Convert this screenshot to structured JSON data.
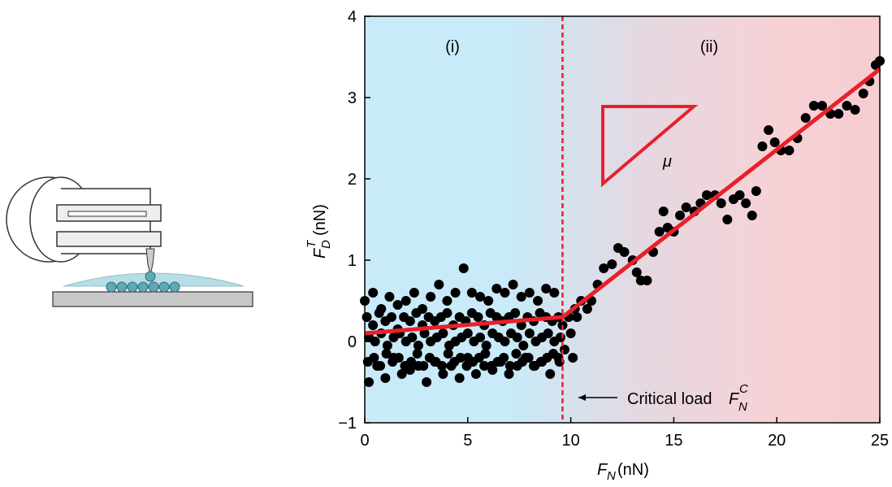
{
  "chart_data": {
    "type": "scatter",
    "xlabel": {
      "main": "F",
      "sub": "N",
      "unit": "(nN)"
    },
    "ylabel": {
      "main": "F",
      "sub": "D",
      "sup": "T",
      "unit": "(nN)"
    },
    "annotations": {
      "region_1": "(i)",
      "region_2": "(ii)",
      "slope": "μ"
    },
    "critical_label": {
      "text": "Critical load ",
      "main": "F",
      "sub": "N",
      "sup": "C"
    },
    "critical_load": 9.6,
    "color": "#000000",
    "xlim": [
      0,
      25
    ],
    "xticks": [
      0,
      5,
      10,
      15,
      20,
      25
    ],
    "ylim": [
      -1,
      4
    ],
    "yticks": [
      {
        "value": -1,
        "label": "−1"
      },
      0,
      1,
      2,
      3,
      4
    ],
    "fit": {
      "x": [
        0,
        9.6,
        25
      ],
      "values": [
        0.1,
        0.3,
        3.35
      ],
      "color": "#e8202a"
    },
    "x": [
      0,
      0.2,
      0.4,
      0.6,
      0.8,
      1,
      1.2,
      1.4,
      1.6,
      1.8,
      2,
      2.2,
      2.4,
      2.6,
      2.8,
      3,
      3.2,
      3.4,
      3.6,
      3.8,
      4,
      4.2,
      4.4,
      4.6,
      4.8,
      5,
      5.2,
      5.4,
      5.6,
      5.8,
      6,
      6.2,
      6.4,
      6.6,
      6.8,
      7,
      7.2,
      7.4,
      7.6,
      7.8,
      8,
      8.2,
      8.4,
      8.6,
      8.8,
      9,
      9.2,
      9.4,
      0.1,
      0.4,
      0.7,
      1,
      1.3,
      1.6,
      1.9,
      2.2,
      2.5,
      2.8,
      3.1,
      3.4,
      3.7,
      4,
      4.3,
      4.6,
      4.9,
      5.2,
      5.5,
      5.8,
      6.1,
      6.4,
      6.7,
      7,
      7.3,
      7.6,
      7.9,
      8.2,
      8.5,
      8.8,
      9.1,
      9.4,
      0.2,
      0.5,
      0.8,
      1.1,
      1.4,
      1.7,
      2,
      2.3,
      2.6,
      2.9,
      3.2,
      3.5,
      3.8,
      4.1,
      4.4,
      4.7,
      5,
      5.3,
      5.6,
      5.9,
      6.2,
      6.5,
      6.8,
      7.1,
      7.4,
      7.7,
      8,
      8.3,
      8.6,
      8.9,
      9.2,
      9.5,
      0.15,
      0.45,
      0.75,
      1.05,
      1.35,
      1.65,
      1.95,
      2.25,
      2.55,
      2.85,
      3.15,
      3.45,
      3.75,
      4.05,
      4.35,
      4.65,
      4.95,
      5.25,
      5.55,
      5.85,
      6.15,
      6.45,
      6.75,
      7.05,
      7.35,
      7.65,
      7.95,
      8.25,
      8.55,
      8.85,
      9.15,
      9.45,
      9.6,
      9.7,
      9.9,
      10,
      10.1,
      10.2,
      10.3,
      10.5,
      10.8,
      11,
      11.3,
      11.6,
      12,
      12.3,
      12.6,
      13,
      13.2,
      13.4,
      13.7,
      14,
      14.3,
      14.5,
      14.7,
      15,
      15.3,
      15.6,
      16,
      16.3,
      16.6,
      17,
      17.3,
      17.6,
      17.9,
      18.2,
      18.5,
      18.8,
      19,
      19.3,
      19.6,
      19.9,
      20.2,
      20.6,
      21,
      21.4,
      21.8,
      22.2,
      22.6,
      23,
      23.4,
      23.8,
      24.2,
      24.5,
      24.8,
      25
    ],
    "values": [
      0.5,
      -0.5,
      0.6,
      -0.3,
      0.4,
      -0.45,
      0.55,
      -0.2,
      0.45,
      -0.4,
      0.5,
      -0.35,
      0.6,
      -0.3,
      0.4,
      -0.5,
      0.55,
      -0.25,
      0.7,
      -0.4,
      0.5,
      -0.3,
      0.6,
      -0.45,
      0.9,
      -0.2,
      0.6,
      -0.4,
      0.55,
      -0.3,
      0.5,
      -0.35,
      0.65,
      -0.25,
      0.6,
      -0.4,
      0.7,
      -0.3,
      0.55,
      -0.2,
      0.6,
      -0.3,
      0.5,
      -0.25,
      0.65,
      -0.4,
      0.6,
      -0.2,
      0.3,
      0.2,
      0.35,
      0.25,
      0.3,
      0.15,
      0.3,
      0.25,
      0.35,
      0.2,
      0.3,
      0.25,
      0.3,
      0.35,
      0.2,
      0.3,
      0.25,
      0.35,
      0.3,
      0.2,
      0.35,
      0.3,
      0.25,
      0.3,
      0.35,
      0.2,
      0.3,
      0.25,
      0.35,
      0.3,
      0.25,
      0.3,
      0.05,
      0,
      0.1,
      -0.05,
      0.05,
      0.1,
      0,
      0.05,
      -0.05,
      0.1,
      0,
      0.05,
      0.1,
      -0.05,
      0,
      0.05,
      0.1,
      0,
      0.05,
      -0.05,
      0.1,
      0.05,
      0,
      0.1,
      0.05,
      -0.05,
      0.1,
      0,
      0.05,
      0.1,
      0,
      0.05,
      -0.25,
      -0.2,
      -0.3,
      -0.15,
      -0.25,
      -0.2,
      -0.3,
      -0.25,
      -0.15,
      -0.3,
      -0.2,
      -0.25,
      -0.3,
      -0.15,
      -0.25,
      -0.2,
      -0.3,
      -0.25,
      -0.2,
      -0.15,
      -0.3,
      -0.25,
      -0.2,
      -0.3,
      -0.15,
      -0.25,
      -0.2,
      -0.3,
      -0.25,
      -0.2,
      -0.15,
      -0.25,
      0.2,
      -0.1,
      0.3,
      0.1,
      -0.2,
      0.4,
      0.3,
      0.5,
      0.4,
      0.5,
      0.7,
      0.9,
      0.95,
      1.15,
      1.1,
      1,
      0.85,
      0.75,
      0.75,
      1.1,
      1.35,
      1.6,
      1.4,
      1.35,
      1.55,
      1.65,
      1.6,
      1.7,
      1.8,
      1.8,
      1.7,
      1.5,
      1.75,
      1.8,
      1.7,
      1.55,
      1.85,
      2.4,
      2.6,
      2.45,
      2.35,
      2.35,
      2.5,
      2.75,
      2.9,
      2.9,
      2.8,
      2.8,
      2.9,
      2.85,
      3.05,
      3.2,
      3.4,
      3.45
    ]
  }
}
